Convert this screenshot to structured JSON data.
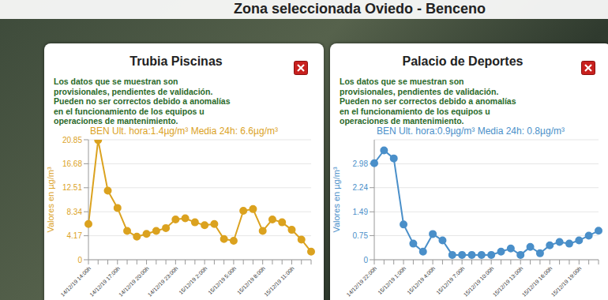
{
  "header": {
    "title": "Zona seleccionada Oviedo - Benceno"
  },
  "chart_data": [
    {
      "type": "line",
      "title": "Trubia Piscinas",
      "annotation": "Los datos que se muestran son provisionales, pendientes de validación. Pueden no ser correctos debido a anomalías en el funcionamiento de los equipos u operaciones de mantenimiento.",
      "subtitle": "BEN Ult. hora:1.4µg/m³ Media 24h: 6.6µg/m³",
      "y_label": "Valores en µg/m³",
      "categories": [
        "14/12/19 14:00h",
        null,
        null,
        "14/12/19 17:00h",
        null,
        null,
        "14/12/19 20:00h",
        null,
        null,
        "14/12/19 23:00h",
        null,
        null,
        "15/12/19 2:00h",
        null,
        null,
        "15/12/19 5:00h",
        null,
        null,
        "15/12/19 8:00h",
        null,
        null,
        "15/12/19 11:00h",
        null,
        null
      ],
      "values": [
        6.2,
        20.8,
        12,
        9,
        5,
        4,
        4.5,
        5,
        5.5,
        7,
        7.2,
        6.5,
        6,
        6.2,
        3.6,
        3.3,
        8.5,
        8.8,
        5,
        7,
        6.5,
        5.2,
        3.5,
        1.4
      ],
      "color": "#dba21f",
      "ylim": [
        0,
        20.85
      ],
      "yticks": [
        0,
        4.17,
        8.34,
        12.51,
        16.68,
        20.85
      ],
      "grid": true,
      "marker": "circle"
    },
    {
      "type": "line",
      "title": "Palacio de Deportes",
      "annotation": "Los datos que se muestran son provisionales, pendientes de validación. Pueden no ser correctos debido a anomalías en el funcionamiento de los equipos u operaciones de mantenimiento.",
      "subtitle": "BEN Ult. hora:0.9µg/m³ Media 24h: 0.8µg/m³",
      "y_label": "Valores en µg/m³",
      "categories": [
        "14/12/19 22:00h",
        null,
        null,
        "15/12/19 1:00h",
        null,
        null,
        "15/12/19 4:00h",
        null,
        null,
        "15/12/19 7:00h",
        null,
        null,
        "15/12/19 10:00h",
        null,
        null,
        "15/12/19 13:00h",
        null,
        null,
        "15/12/19 16:00h",
        null,
        null,
        "15/12/19 19:00h",
        null,
        null
      ],
      "values": [
        3.0,
        3.4,
        3.15,
        1.1,
        0.5,
        0.25,
        0.8,
        0.6,
        0.15,
        0.15,
        0.15,
        0.15,
        0.15,
        0.25,
        0.35,
        0.15,
        0.4,
        0.2,
        0.45,
        0.55,
        0.5,
        0.6,
        0.75,
        0.9
      ],
      "color": "#4a8fc9",
      "ylim": [
        0,
        3.73
      ],
      "yticks": [
        0,
        0.75,
        1.49,
        2.24,
        2.98
      ],
      "grid": true,
      "marker": "circle"
    }
  ]
}
